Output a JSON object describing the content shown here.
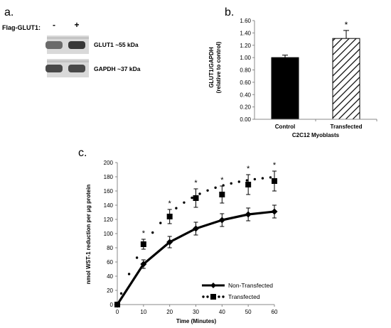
{
  "panel_a": {
    "letter": "a.",
    "row_label": "Flag-GLUT1:",
    "lanes": [
      "-",
      "+"
    ],
    "bands": [
      {
        "label": "GLUT1 ~55 kDa",
        "intensities": [
          0.55,
          0.85
        ]
      },
      {
        "label": "GAPDH ~37 kDa",
        "intensities": [
          0.75,
          0.75
        ]
      }
    ]
  },
  "chart_data": [
    {
      "panel_letter": "b.",
      "type": "bar",
      "categories": [
        "Control",
        "Transfected"
      ],
      "values": [
        1.0,
        1.31
      ],
      "errors": [
        0.04,
        0.13
      ],
      "significance": [
        "",
        "*"
      ],
      "fills": [
        "#000000",
        "hatch"
      ],
      "title": "",
      "xlabel": "C2C12 Myoblasts",
      "ylabel": "GLUT1/GAPDH",
      "ylabel_sub": "(relative to control)",
      "ylim": [
        0,
        1.6
      ],
      "yticks": [
        "0.00",
        "0.20",
        "0.40",
        "0.60",
        "0.80",
        "1.00",
        "1.20",
        "1.40",
        "1.60"
      ]
    },
    {
      "panel_letter": "c.",
      "type": "line",
      "x": [
        0,
        10,
        20,
        30,
        40,
        50,
        60
      ],
      "series": [
        {
          "name": "Non-Transfected",
          "values": [
            0,
            57,
            88,
            107,
            119,
            127,
            131
          ],
          "errors": [
            2,
            6,
            8,
            9,
            9,
            9,
            9
          ],
          "style": "solid",
          "marker": "diamond"
        },
        {
          "name": "Transfected",
          "values": [
            0,
            85,
            124,
            150,
            155,
            169,
            174
          ],
          "errors": [
            2,
            7,
            10,
            13,
            12,
            14,
            14
          ],
          "style": "dotted",
          "marker": "square"
        }
      ],
      "significance": [
        "",
        "*",
        "*",
        "*",
        "*",
        "*",
        "*"
      ],
      "title": "",
      "xlabel": "Time (Minutes)",
      "ylabel": "nmol WST-1 reduction per μg protein",
      "xlim": [
        0,
        60
      ],
      "ylim": [
        0,
        200
      ],
      "xticks": [
        "0",
        "10",
        "20",
        "30",
        "40",
        "50",
        "60"
      ],
      "yticks": [
        "0",
        "20",
        "40",
        "60",
        "80",
        "100",
        "120",
        "140",
        "160",
        "180",
        "200"
      ],
      "legend": "bottom-right"
    }
  ]
}
